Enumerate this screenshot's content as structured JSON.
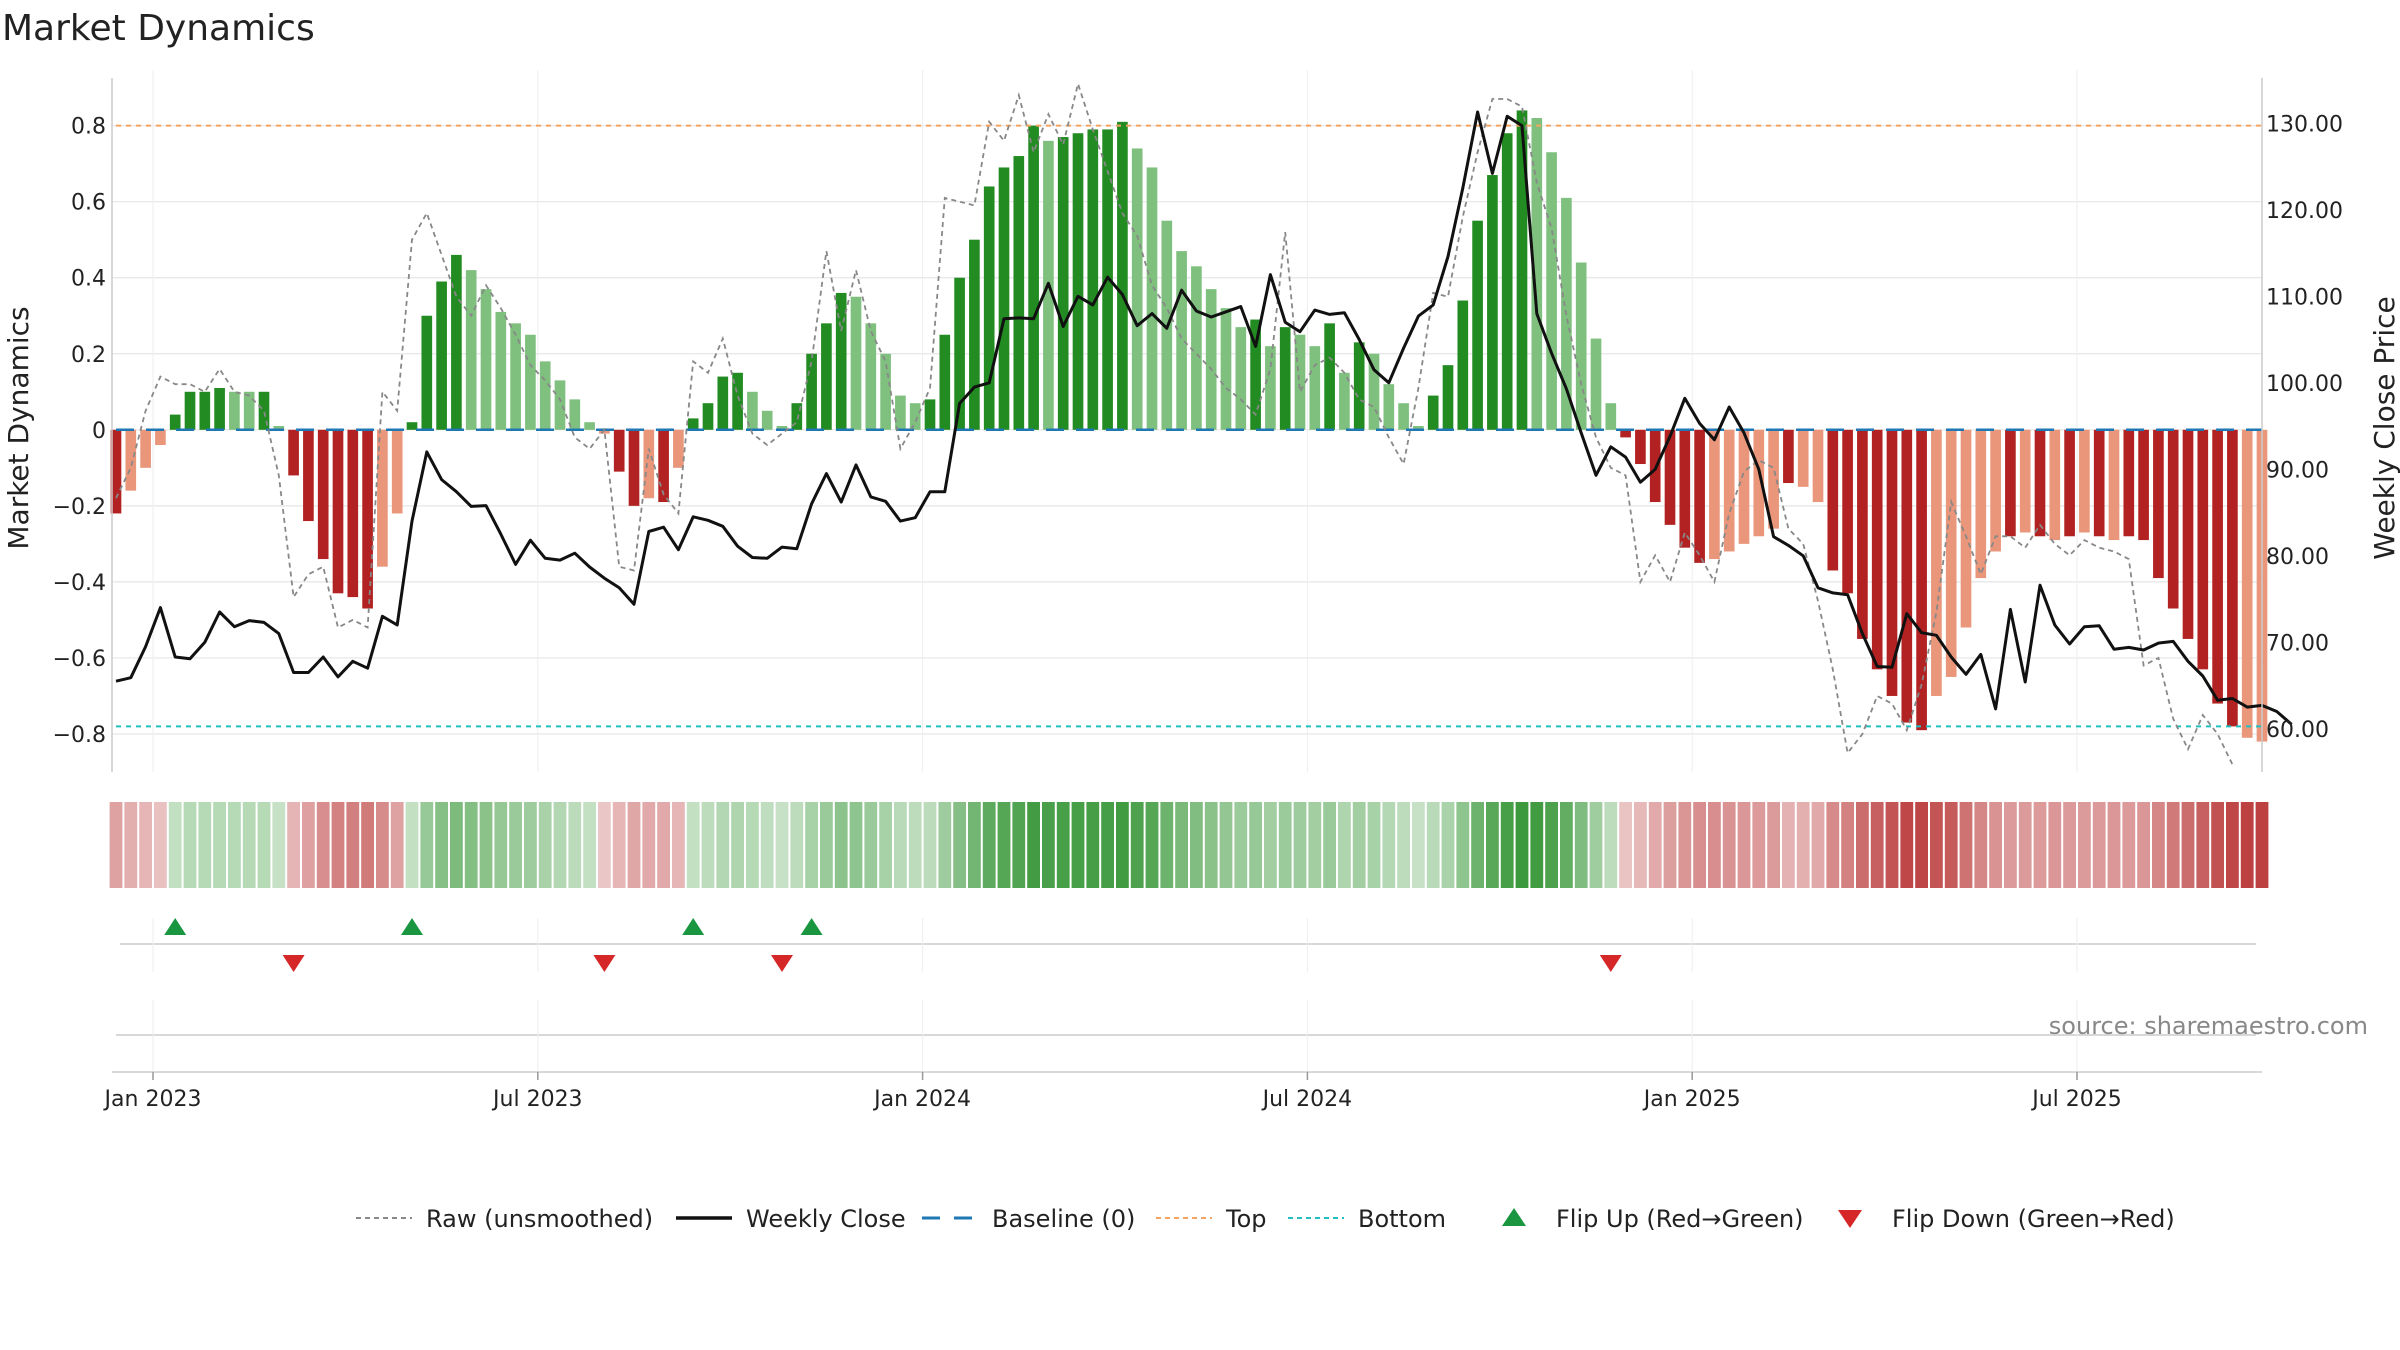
{
  "chart_data": {
    "type": "bar",
    "title": "Market Dynamics",
    "ylabel": "Market Dynamics",
    "ylabel_right": "Weekly Close Price",
    "ylim": [
      -0.9,
      0.92
    ],
    "ylim_right": [
      55,
      135
    ],
    "yticks": [
      "0.8",
      "0.6",
      "0.4",
      "0.2",
      "0",
      "−0.2",
      "−0.4",
      "−0.6",
      "−0.8"
    ],
    "yticks_values": [
      0.8,
      0.6,
      0.4,
      0.2,
      0,
      -0.2,
      -0.4,
      -0.6,
      -0.8
    ],
    "yticks_right": [
      "130.00",
      "120.00",
      "110.00",
      "100.00",
      "90.00",
      "80.00",
      "70.00",
      "60.00"
    ],
    "yticks_right_values": [
      130,
      120,
      110,
      100,
      90,
      80,
      70,
      60
    ],
    "xticks": [
      "Jan 2023",
      "Jul 2023",
      "Jan 2024",
      "Jul 2024",
      "Jan 2025",
      "Jul 2025"
    ],
    "xticks_index": [
      2.5,
      28.5,
      54.5,
      80.5,
      106.5,
      132.5
    ],
    "top_level": 0.8,
    "bottom_level": -0.78,
    "baseline": 0,
    "grid": true,
    "legend_position": "bottom",
    "source": "source: sharemaestro.com",
    "colors": {
      "strong_green": "#228B22",
      "light_green": "#7FC07F",
      "strong_red": "#B22222",
      "light_red": "#E9967A",
      "close_line": "#111111",
      "raw_line": "#888888",
      "baseline": "#1f77b4",
      "top": "#f4a460",
      "bottom": "#20c0c0",
      "flip_up": "#1a9641",
      "flip_down": "#d62728"
    },
    "dynamics": [
      -0.22,
      -0.16,
      -0.1,
      -0.04,
      0.04,
      0.1,
      0.1,
      0.11,
      0.1,
      0.1,
      0.1,
      0.01,
      -0.12,
      -0.24,
      -0.34,
      -0.43,
      -0.44,
      -0.47,
      -0.36,
      -0.22,
      0.02,
      0.3,
      0.39,
      0.46,
      0.42,
      0.37,
      0.31,
      0.28,
      0.25,
      0.18,
      0.13,
      0.08,
      0.02,
      -0.01,
      -0.11,
      -0.2,
      -0.18,
      -0.19,
      -0.1,
      0.03,
      0.07,
      0.14,
      0.15,
      0.1,
      0.05,
      0.01,
      0.07,
      0.2,
      0.28,
      0.36,
      0.35,
      0.28,
      0.2,
      0.09,
      0.07,
      0.08,
      0.25,
      0.4,
      0.5,
      0.64,
      0.69,
      0.72,
      0.8,
      0.76,
      0.77,
      0.78,
      0.79,
      0.79,
      0.81,
      0.74,
      0.69,
      0.55,
      0.47,
      0.43,
      0.37,
      0.32,
      0.27,
      0.29,
      0.22,
      0.27,
      0.25,
      0.22,
      0.28,
      0.15,
      0.23,
      0.2,
      0.12,
      0.07,
      0.01,
      0.09,
      0.17,
      0.34,
      0.55,
      0.67,
      0.78,
      0.84,
      0.82,
      0.73,
      0.61,
      0.44,
      0.24,
      0.07,
      -0.02,
      -0.09,
      -0.19,
      -0.25,
      -0.31,
      -0.35,
      -0.34,
      -0.32,
      -0.3,
      -0.28,
      -0.26,
      -0.14,
      -0.15,
      -0.19,
      -0.37,
      -0.43,
      -0.55,
      -0.63,
      -0.7,
      -0.77,
      -0.79,
      -0.7,
      -0.65,
      -0.52,
      -0.39,
      -0.32,
      -0.28,
      -0.27,
      -0.28,
      -0.29,
      -0.28,
      -0.27,
      -0.28,
      -0.29,
      -0.28,
      -0.29,
      -0.39,
      -0.47,
      -0.55,
      -0.63,
      -0.72,
      -0.78,
      -0.81,
      -0.82
    ],
    "bar_strength": [
      "strong",
      "light",
      "light",
      "light",
      "strong",
      "strong",
      "strong",
      "strong",
      "light",
      "light",
      "strong",
      "light",
      "strong",
      "strong",
      "strong",
      "strong",
      "strong",
      "strong",
      "light",
      "light",
      "strong",
      "strong",
      "strong",
      "strong",
      "light",
      "light",
      "light",
      "light",
      "light",
      "light",
      "light",
      "light",
      "light",
      "light",
      "strong",
      "strong",
      "light",
      "strong",
      "light",
      "strong",
      "strong",
      "strong",
      "strong",
      "light",
      "light",
      "light",
      "strong",
      "strong",
      "strong",
      "strong",
      "light",
      "light",
      "light",
      "light",
      "light",
      "strong",
      "strong",
      "strong",
      "strong",
      "strong",
      "strong",
      "strong",
      "strong",
      "light",
      "strong",
      "strong",
      "strong",
      "strong",
      "strong",
      "light",
      "light",
      "light",
      "light",
      "light",
      "light",
      "light",
      "light",
      "strong",
      "light",
      "strong",
      "light",
      "light",
      "strong",
      "light",
      "strong",
      "light",
      "light",
      "light",
      "light",
      "strong",
      "strong",
      "strong",
      "strong",
      "strong",
      "strong",
      "strong",
      "light",
      "light",
      "light",
      "light",
      "light",
      "light",
      "strong",
      "strong",
      "strong",
      "strong",
      "strong",
      "strong",
      "light",
      "light",
      "light",
      "light",
      "light",
      "strong",
      "light",
      "light",
      "strong",
      "strong",
      "strong",
      "strong",
      "strong",
      "strong",
      "strong",
      "light",
      "light",
      "light",
      "light",
      "light",
      "strong",
      "light",
      "strong",
      "light",
      "strong",
      "light",
      "strong",
      "light",
      "strong",
      "strong",
      "strong",
      "strong",
      "strong",
      "strong",
      "strong",
      "strong"
    ],
    "raw": [
      -0.18,
      -0.1,
      0.05,
      0.14,
      0.12,
      0.12,
      0.1,
      0.16,
      0.1,
      0.09,
      0.05,
      -0.12,
      -0.44,
      -0.38,
      -0.36,
      -0.52,
      -0.5,
      -0.52,
      0.1,
      0.05,
      0.5,
      0.57,
      0.46,
      0.35,
      0.3,
      0.38,
      0.32,
      0.25,
      0.17,
      0.13,
      0.08,
      -0.02,
      -0.05,
      0.0,
      -0.36,
      -0.37,
      -0.05,
      -0.17,
      -0.22,
      0.18,
      0.15,
      0.24,
      0.09,
      -0.01,
      -0.04,
      -0.01,
      0.02,
      0.18,
      0.47,
      0.26,
      0.42,
      0.26,
      0.18,
      -0.05,
      0.02,
      0.11,
      0.61,
      0.6,
      0.59,
      0.81,
      0.76,
      0.88,
      0.73,
      0.83,
      0.75,
      0.91,
      0.79,
      0.68,
      0.57,
      0.51,
      0.38,
      0.32,
      0.24,
      0.2,
      0.16,
      0.11,
      0.08,
      0.04,
      0.16,
      0.52,
      0.1,
      0.17,
      0.19,
      0.15,
      0.08,
      0.06,
      -0.02,
      -0.09,
      0.11,
      0.36,
      0.35,
      0.56,
      0.73,
      0.87,
      0.87,
      0.85,
      0.65,
      0.53,
      0.3,
      0.12,
      -0.02,
      -0.1,
      -0.12,
      -0.4,
      -0.33,
      -0.4,
      -0.27,
      -0.33,
      -0.4,
      -0.22,
      -0.11,
      -0.08,
      -0.1,
      -0.26,
      -0.3,
      -0.45,
      -0.63,
      -0.85,
      -0.8,
      -0.7,
      -0.72,
      -0.79,
      -0.67,
      -0.48,
      -0.19,
      -0.28,
      -0.38,
      -0.28,
      -0.28,
      -0.31,
      -0.25,
      -0.3,
      -0.33,
      -0.29,
      -0.31,
      -0.32,
      -0.34,
      -0.62,
      -0.6,
      -0.76,
      -0.84,
      -0.75,
      -0.8,
      -0.88
    ],
    "close": [
      65.5,
      65.9,
      69.5,
      74.0,
      68.3,
      68.1,
      70.0,
      73.5,
      71.8,
      72.5,
      72.3,
      71.0,
      66.5,
      66.5,
      68.3,
      66.0,
      67.8,
      67.0,
      73.0,
      72.0,
      84.0,
      92.0,
      88.8,
      87.4,
      85.7,
      85.8,
      82.5,
      79.0,
      81.8,
      79.7,
      79.5,
      80.3,
      78.7,
      77.4,
      76.3,
      74.4,
      82.8,
      83.3,
      80.7,
      84.5,
      84.1,
      83.4,
      81.1,
      79.8,
      79.7,
      81.0,
      80.8,
      86.0,
      89.5,
      86.2,
      90.5,
      86.8,
      86.3,
      84.0,
      84.4,
      87.4,
      87.4,
      97.6,
      99.5,
      100.0,
      107.4,
      107.5,
      107.4,
      111.5,
      106.5,
      110.0,
      109.0,
      112.2,
      110.2,
      106.6,
      108.0,
      106.3,
      110.7,
      108.3,
      107.6,
      108.2,
      108.8,
      104.2,
      112.5,
      107.0,
      105.9,
      108.4,
      107.9,
      108.1,
      105.0,
      101.5,
      100.0,
      104.0,
      107.7,
      109.0,
      114.6,
      122.5,
      131.3,
      124.2,
      130.8,
      129.7,
      108.0,
      103.4,
      99.3,
      94.2,
      89.3,
      92.6,
      91.4,
      88.5,
      90.0,
      93.8,
      98.2,
      95.3,
      93.4,
      97.2,
      94.2,
      90.0,
      82.2,
      81.2,
      80.0,
      76.3,
      75.7,
      75.5,
      71.0,
      67.2,
      67.1,
      73.3,
      71.1,
      70.8,
      68.3,
      66.3,
      68.6,
      62.3,
      73.8,
      65.4,
      76.6,
      72.0,
      69.8,
      71.8,
      71.9,
      69.2,
      69.4,
      69.1,
      69.9,
      70.1,
      67.8,
      66.1,
      63.3,
      63.5,
      62.5,
      62.7,
      62.0,
      60.5
    ],
    "flip_up": [
      4,
      20,
      39,
      47
    ],
    "flip_down": [
      12,
      33,
      45,
      101
    ],
    "legend": [
      {
        "label": "Raw (unsmoothed)",
        "style": "dotted-gray"
      },
      {
        "label": "Weekly Close",
        "style": "solid-black"
      },
      {
        "label": "Baseline (0)",
        "style": "dashed-blue"
      },
      {
        "label": "Top",
        "style": "dotted-orange"
      },
      {
        "label": "Bottom",
        "style": "dotted-cyan"
      },
      {
        "label": "Flip Up (Red→Green)",
        "style": "triangle-up"
      },
      {
        "label": "Flip Down (Green→Red)",
        "style": "triangle-down"
      }
    ]
  }
}
